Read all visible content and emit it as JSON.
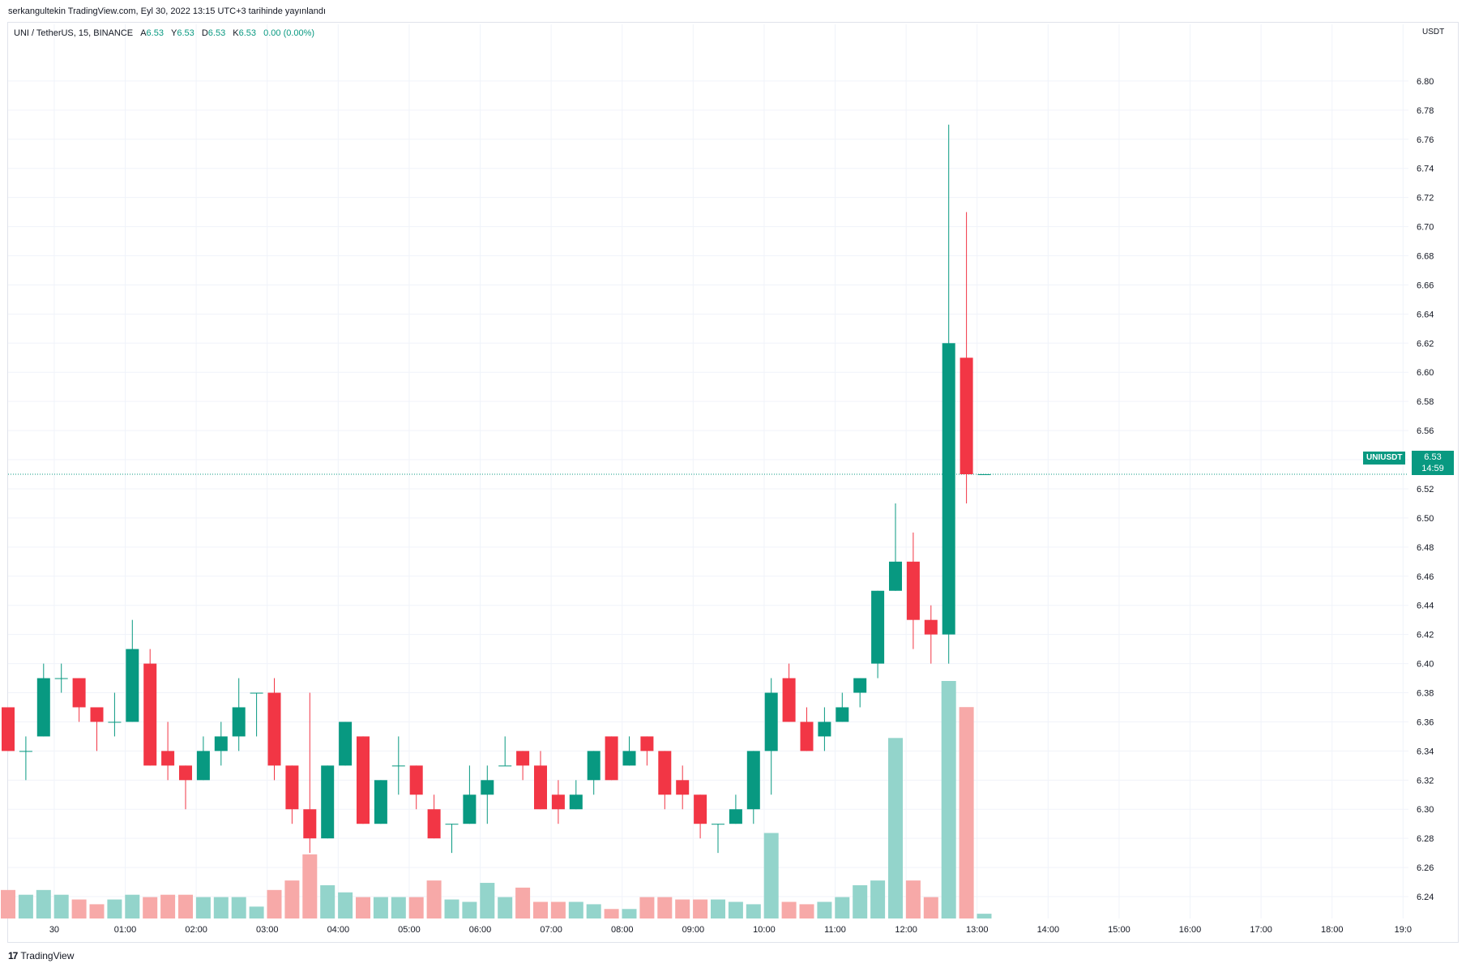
{
  "header": {
    "published": "serkangultekin TradingView.com, Eyl 30, 2022 13:15 UTC+3 tarihinde yayınlandı"
  },
  "legend": {
    "symbol": "UNI / TetherUS, 15, BINANCE",
    "o_label": "A",
    "o_value": "6.53",
    "h_label": "Y",
    "h_value": "6.53",
    "l_label": "D",
    "l_value": "6.53",
    "c_label": "K",
    "c_value": "6.53",
    "change": "0.00 (0.00%)"
  },
  "price_axis": {
    "currency": "USDT",
    "last_symbol": "UNIUSDT",
    "last_price": "6.53",
    "countdown": "14:59"
  },
  "footer": {
    "logo_mark": "17",
    "brand": "TradingView"
  },
  "colors": {
    "up": "#089981",
    "down": "#f23645",
    "up_volume": "#93d4cb",
    "down_volume": "#f7a9a8",
    "grid": "#f0f3fa",
    "last_price_line": "#089981"
  },
  "chart_data": {
    "type": "candlestick",
    "interval": "15",
    "ylim": [
      6.225,
      6.83
    ],
    "y_ticks": [
      6.24,
      6.26,
      6.28,
      6.3,
      6.32,
      6.34,
      6.36,
      6.38,
      6.4,
      6.42,
      6.44,
      6.46,
      6.48,
      6.5,
      6.52,
      6.54,
      6.56,
      6.58,
      6.6,
      6.62,
      6.64,
      6.66,
      6.68,
      6.7,
      6.72,
      6.74,
      6.76,
      6.78,
      6.8
    ],
    "x_ticks": [
      {
        "label": "30",
        "bar": 2.6
      },
      {
        "label": "01:00",
        "bar": 6.6
      },
      {
        "label": "02:00",
        "bar": 10.6
      },
      {
        "label": "03:00",
        "bar": 14.6
      },
      {
        "label": "04:00",
        "bar": 18.6
      },
      {
        "label": "05:00",
        "bar": 22.6
      },
      {
        "label": "06:00",
        "bar": 26.6
      },
      {
        "label": "07:00",
        "bar": 30.6
      },
      {
        "label": "08:00",
        "bar": 34.6
      },
      {
        "label": "09:00",
        "bar": 38.6
      },
      {
        "label": "10:00",
        "bar": 42.6
      },
      {
        "label": "11:00",
        "bar": 46.6
      },
      {
        "label": "12:00",
        "bar": 50.6
      },
      {
        "label": "13:00",
        "bar": 54.6
      },
      {
        "label": "14:00",
        "bar": 58.6
      },
      {
        "label": "15:00",
        "bar": 62.6
      },
      {
        "label": "16:00",
        "bar": 66.6
      },
      {
        "label": "17:00",
        "bar": 70.6
      },
      {
        "label": "18:00",
        "bar": 74.6
      },
      {
        "label": "19:0",
        "bar": 78.6
      }
    ],
    "last_price": 6.53,
    "candles": [
      {
        "o": 6.37,
        "h": 6.37,
        "l": 6.34,
        "c": 6.34
      },
      {
        "o": 6.34,
        "h": 6.35,
        "l": 6.32,
        "c": 6.34
      },
      {
        "o": 6.35,
        "h": 6.4,
        "l": 6.35,
        "c": 6.39
      },
      {
        "o": 6.39,
        "h": 6.4,
        "l": 6.38,
        "c": 6.39
      },
      {
        "o": 6.39,
        "h": 6.39,
        "l": 6.36,
        "c": 6.37
      },
      {
        "o": 6.37,
        "h": 6.37,
        "l": 6.34,
        "c": 6.36
      },
      {
        "o": 6.36,
        "h": 6.38,
        "l": 6.35,
        "c": 6.36
      },
      {
        "o": 6.36,
        "h": 6.43,
        "l": 6.36,
        "c": 6.41
      },
      {
        "o": 6.4,
        "h": 6.41,
        "l": 6.33,
        "c": 6.33
      },
      {
        "o": 6.34,
        "h": 6.36,
        "l": 6.32,
        "c": 6.33
      },
      {
        "o": 6.33,
        "h": 6.33,
        "l": 6.3,
        "c": 6.32
      },
      {
        "o": 6.32,
        "h": 6.35,
        "l": 6.32,
        "c": 6.34
      },
      {
        "o": 6.34,
        "h": 6.36,
        "l": 6.33,
        "c": 6.35
      },
      {
        "o": 6.35,
        "h": 6.39,
        "l": 6.34,
        "c": 6.37
      },
      {
        "o": 6.38,
        "h": 6.38,
        "l": 6.35,
        "c": 6.38
      },
      {
        "o": 6.38,
        "h": 6.39,
        "l": 6.32,
        "c": 6.33
      },
      {
        "o": 6.33,
        "h": 6.33,
        "l": 6.29,
        "c": 6.3
      },
      {
        "o": 6.3,
        "h": 6.38,
        "l": 6.27,
        "c": 6.28
      },
      {
        "o": 6.28,
        "h": 6.33,
        "l": 6.28,
        "c": 6.33
      },
      {
        "o": 6.33,
        "h": 6.36,
        "l": 6.33,
        "c": 6.36
      },
      {
        "o": 6.35,
        "h": 6.35,
        "l": 6.29,
        "c": 6.29
      },
      {
        "o": 6.29,
        "h": 6.32,
        "l": 6.29,
        "c": 6.32
      },
      {
        "o": 6.33,
        "h": 6.35,
        "l": 6.31,
        "c": 6.33
      },
      {
        "o": 6.33,
        "h": 6.33,
        "l": 6.3,
        "c": 6.31
      },
      {
        "o": 6.3,
        "h": 6.31,
        "l": 6.28,
        "c": 6.28
      },
      {
        "o": 6.29,
        "h": 6.29,
        "l": 6.27,
        "c": 6.29
      },
      {
        "o": 6.29,
        "h": 6.33,
        "l": 6.29,
        "c": 6.31
      },
      {
        "o": 6.31,
        "h": 6.33,
        "l": 6.29,
        "c": 6.32
      },
      {
        "o": 6.33,
        "h": 6.35,
        "l": 6.33,
        "c": 6.33
      },
      {
        "o": 6.34,
        "h": 6.34,
        "l": 6.32,
        "c": 6.33
      },
      {
        "o": 6.33,
        "h": 6.34,
        "l": 6.3,
        "c": 6.3
      },
      {
        "o": 6.31,
        "h": 6.32,
        "l": 6.29,
        "c": 6.3
      },
      {
        "o": 6.3,
        "h": 6.32,
        "l": 6.3,
        "c": 6.31
      },
      {
        "o": 6.32,
        "h": 6.34,
        "l": 6.31,
        "c": 6.34
      },
      {
        "o": 6.35,
        "h": 6.35,
        "l": 6.32,
        "c": 6.32
      },
      {
        "o": 6.33,
        "h": 6.35,
        "l": 6.33,
        "c": 6.34
      },
      {
        "o": 6.35,
        "h": 6.35,
        "l": 6.33,
        "c": 6.34
      },
      {
        "o": 6.34,
        "h": 6.34,
        "l": 6.3,
        "c": 6.31
      },
      {
        "o": 6.32,
        "h": 6.33,
        "l": 6.3,
        "c": 6.31
      },
      {
        "o": 6.31,
        "h": 6.31,
        "l": 6.28,
        "c": 6.29
      },
      {
        "o": 6.29,
        "h": 6.29,
        "l": 6.27,
        "c": 6.29
      },
      {
        "o": 6.29,
        "h": 6.31,
        "l": 6.29,
        "c": 6.3
      },
      {
        "o": 6.3,
        "h": 6.34,
        "l": 6.29,
        "c": 6.34
      },
      {
        "o": 6.34,
        "h": 6.39,
        "l": 6.31,
        "c": 6.38
      },
      {
        "o": 6.39,
        "h": 6.4,
        "l": 6.36,
        "c": 6.36
      },
      {
        "o": 6.36,
        "h": 6.37,
        "l": 6.34,
        "c": 6.34
      },
      {
        "o": 6.35,
        "h": 6.37,
        "l": 6.34,
        "c": 6.36
      },
      {
        "o": 6.36,
        "h": 6.38,
        "l": 6.36,
        "c": 6.37
      },
      {
        "o": 6.38,
        "h": 6.39,
        "l": 6.37,
        "c": 6.39
      },
      {
        "o": 6.4,
        "h": 6.45,
        "l": 6.39,
        "c": 6.45
      },
      {
        "o": 6.45,
        "h": 6.51,
        "l": 6.45,
        "c": 6.47
      },
      {
        "o": 6.47,
        "h": 6.49,
        "l": 6.41,
        "c": 6.43
      },
      {
        "o": 6.43,
        "h": 6.44,
        "l": 6.4,
        "c": 6.42
      },
      {
        "o": 6.42,
        "h": 6.77,
        "l": 6.4,
        "c": 6.62
      },
      {
        "o": 6.61,
        "h": 6.71,
        "l": 6.51,
        "c": 6.53
      },
      {
        "o": 6.53,
        "h": 6.53,
        "l": 6.53,
        "c": 6.53
      }
    ],
    "volume_relative": [
      0.12,
      0.1,
      0.12,
      0.1,
      0.08,
      0.06,
      0.08,
      0.1,
      0.09,
      0.1,
      0.1,
      0.09,
      0.09,
      0.09,
      0.05,
      0.12,
      0.16,
      0.27,
      0.14,
      0.11,
      0.09,
      0.09,
      0.09,
      0.09,
      0.16,
      0.08,
      0.07,
      0.15,
      0.09,
      0.13,
      0.07,
      0.07,
      0.07,
      0.06,
      0.04,
      0.04,
      0.09,
      0.09,
      0.08,
      0.08,
      0.08,
      0.07,
      0.06,
      0.36,
      0.07,
      0.06,
      0.07,
      0.09,
      0.14,
      0.16,
      0.76,
      0.16,
      0.09,
      1.0,
      0.89,
      0.02
    ]
  }
}
